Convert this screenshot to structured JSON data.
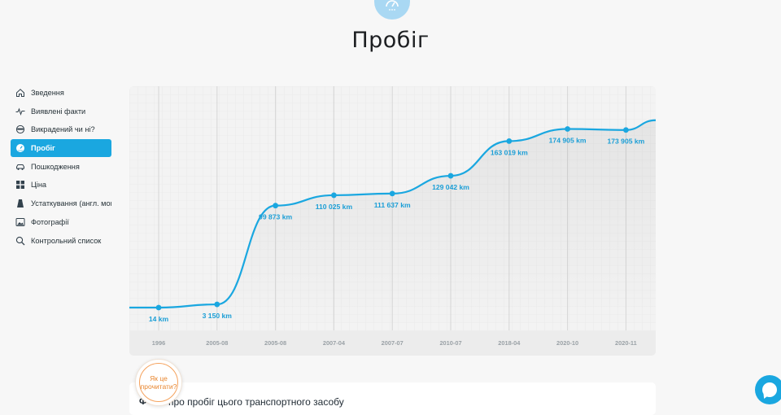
{
  "page": {
    "title": "Пробіг"
  },
  "sidebar": {
    "items": [
      {
        "label": "Зведення",
        "icon": "home-icon",
        "active": false
      },
      {
        "label": "Виявлені факти",
        "icon": "pulse-icon",
        "active": false
      },
      {
        "label": "Викрадений чи ні?",
        "icon": "thief-icon",
        "active": false
      },
      {
        "label": "Пробіг",
        "icon": "speedometer-icon",
        "active": true
      },
      {
        "label": "Пошкодження",
        "icon": "car-crash-icon",
        "active": false
      },
      {
        "label": "Ціна",
        "icon": "grid-icon",
        "active": false
      },
      {
        "label": "Устаткування (англ. мов",
        "icon": "equipment-icon",
        "active": false
      },
      {
        "label": "Фотографії",
        "icon": "photo-icon",
        "active": false
      },
      {
        "label": "Контрольний список",
        "icon": "magnifier-icon",
        "active": false
      }
    ]
  },
  "chart_data": {
    "type": "line",
    "categories": [
      "1996",
      "2005-08",
      "2005-08",
      "2007-04",
      "2007-07",
      "2010-07",
      "2018-04",
      "2020-10",
      "2020-11"
    ],
    "values": [
      14,
      3150,
      99873,
      110025,
      111637,
      129042,
      163019,
      174905,
      173905
    ],
    "value_labels": [
      "14 km",
      "3 150 km",
      "99 873 km",
      "110 025 km",
      "111 637 km",
      "129 042 km",
      "163 019 km",
      "174 905 km",
      "173 905 km"
    ],
    "unit": "km",
    "grid": true,
    "line_color": "#1aa7e0",
    "label_color": "#1a9ed6"
  },
  "howto": {
    "line1": "Як це",
    "line2": "прочитати?"
  },
  "info": {
    "lead": "Ф",
    "text": "про пробіг цього транспортного засобу"
  },
  "colors": {
    "accent": "#1aa7e0",
    "howto": "#e8862f"
  }
}
